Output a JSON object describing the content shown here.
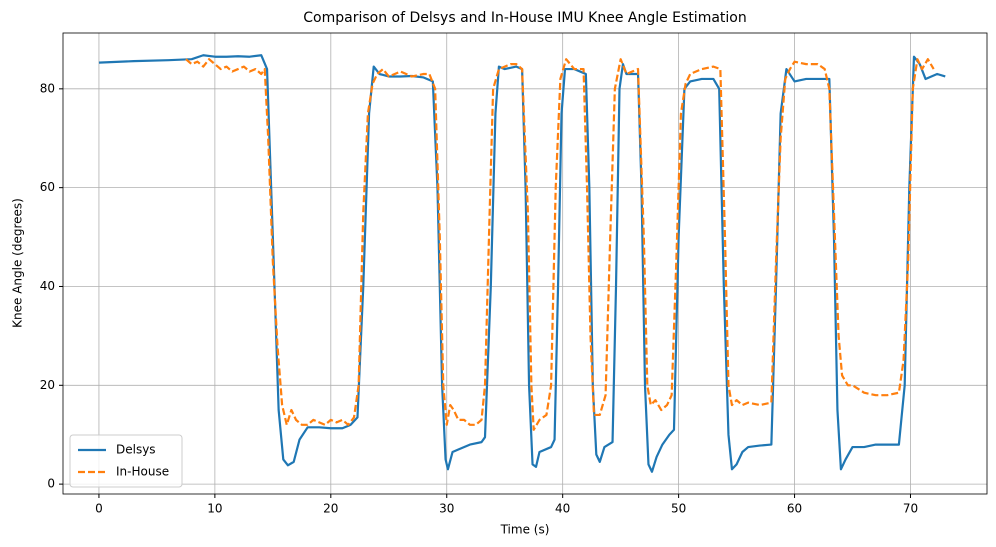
{
  "chart_data": {
    "type": "line",
    "title": "Comparison of Delsys and In-House IMU Knee Angle Estimation",
    "xlabel": "Time (s)",
    "ylabel": "Knee Angle (degrees)",
    "xlim": [
      -3.1,
      76.6
    ],
    "ylim": [
      -2.0,
      91.3
    ],
    "xticks": [
      0,
      10,
      20,
      30,
      40,
      50,
      60,
      70
    ],
    "yticks": [
      0,
      20,
      40,
      60,
      80
    ],
    "grid": true,
    "legend": "lower left",
    "series": [
      {
        "name": "Delsys",
        "color": "#1f77b4",
        "linestyle": "solid",
        "x": [
          0,
          3,
          6,
          8,
          9,
          10,
          11,
          12,
          13,
          14,
          14.5,
          15,
          15.5,
          15.9,
          16.3,
          16.8,
          17.3,
          18,
          19,
          20,
          21,
          21.7,
          22.3,
          22.8,
          23.3,
          23.7,
          24.2,
          25,
          26,
          27,
          28,
          28.8,
          29.2,
          29.6,
          29.9,
          30.1,
          30.5,
          31,
          32,
          33,
          33.3,
          33.8,
          34.2,
          34.5,
          35,
          36,
          36.5,
          36.8,
          37.1,
          37.4,
          37.7,
          38,
          39,
          39.3,
          39.6,
          39.9,
          40.2,
          41,
          42,
          42.3,
          42.6,
          42.9,
          43.2,
          43.6,
          44.3,
          44.6,
          44.9,
          45.2,
          45.5,
          46,
          46.5,
          46.8,
          47.1,
          47.4,
          47.7,
          48.1,
          48.6,
          49.2,
          49.6,
          50,
          50.5,
          51,
          52,
          53,
          53.5,
          53.9,
          54.3,
          54.6,
          55,
          55.5,
          56,
          57,
          58,
          58.4,
          58.8,
          59.3,
          60,
          61,
          62,
          63,
          63.4,
          63.7,
          64,
          64.4,
          65,
          66,
          67,
          68,
          69,
          69.5,
          69.9,
          70.3,
          70.8,
          71.3,
          71.8,
          72.3,
          73
        ],
        "values": [
          85.3,
          85.6,
          85.8,
          86,
          86.8,
          86.5,
          86.5,
          86.6,
          86.5,
          86.8,
          84,
          50,
          15,
          5,
          3.8,
          4.5,
          9,
          11.5,
          11.5,
          11.3,
          11.3,
          12,
          13.5,
          40,
          75,
          84.5,
          83,
          82.5,
          82.5,
          82.6,
          82.3,
          81.5,
          60,
          20,
          5,
          3,
          6.5,
          7,
          8,
          8.5,
          9.5,
          40,
          75,
          84.5,
          84,
          84.5,
          84,
          60,
          20,
          4,
          3.5,
          6.5,
          7.5,
          9,
          40,
          75,
          84,
          84,
          83,
          60,
          20,
          6,
          4.5,
          7.5,
          8.5,
          40,
          80,
          85,
          83,
          83,
          83,
          60,
          20,
          4,
          2.5,
          5.5,
          8,
          10,
          11,
          50,
          80,
          81.5,
          82,
          82,
          80,
          40,
          10,
          3,
          4,
          6.5,
          7.5,
          7.8,
          8,
          40,
          75,
          84,
          81.5,
          82,
          82,
          82,
          50,
          15,
          3,
          5,
          7.5,
          7.5,
          8,
          8,
          8,
          20,
          60,
          86.5,
          85,
          82,
          82.5,
          83,
          82.5
        ]
      },
      {
        "name": "In-House",
        "color": "#ff7f0e",
        "linestyle": "dashed",
        "x": [
          7.5,
          8,
          8.5,
          9,
          9.5,
          10,
          10.5,
          11,
          11.5,
          12,
          12.5,
          13,
          13.5,
          14,
          14.3,
          14.6,
          15,
          15.4,
          15.8,
          16.2,
          16.6,
          17,
          17.5,
          18,
          18.5,
          19,
          19.5,
          20,
          20.5,
          21,
          21.5,
          22,
          22.4,
          22.8,
          23.2,
          23.6,
          24,
          24.5,
          25,
          26,
          27,
          28,
          28.5,
          29,
          29.4,
          29.7,
          30,
          30.3,
          30.6,
          31,
          31.5,
          32,
          32.5,
          33,
          33.3,
          33.7,
          34,
          34.5,
          35,
          35.5,
          36,
          36.5,
          37,
          37.3,
          37.5,
          38,
          38.6,
          39,
          39.4,
          39.8,
          40.3,
          41,
          41.8,
          42.1,
          42.4,
          42.7,
          43.2,
          43.7,
          44.1,
          44.5,
          45,
          45.5,
          46,
          46.5,
          47,
          47.3,
          47.6,
          48,
          48.5,
          49,
          49.4,
          49.8,
          50.2,
          50.6,
          51,
          52,
          53,
          53.6,
          54,
          54.3,
          54.6,
          55,
          55.5,
          56,
          57,
          58,
          58.4,
          58.8,
          59.2,
          59.6,
          60,
          61,
          62,
          62.6,
          63,
          63.4,
          63.8,
          64.1,
          64.6,
          65,
          66,
          67,
          68,
          69,
          69.4,
          69.8,
          70.2,
          70.6,
          71,
          71.5,
          72
        ],
        "values": [
          86,
          85,
          85.5,
          84.5,
          86,
          85,
          84,
          84.5,
          83.5,
          84,
          84.5,
          83.5,
          84,
          83,
          84,
          70,
          45,
          28,
          16,
          12,
          15,
          13,
          12,
          12,
          13,
          12.5,
          12,
          13,
          12.5,
          13,
          12,
          13.5,
          20,
          55,
          75,
          81,
          83,
          84,
          82.5,
          83.5,
          82.5,
          83,
          83,
          80,
          50,
          20,
          12,
          16,
          15,
          13,
          13,
          12,
          12,
          13,
          20,
          55,
          80,
          84,
          84.5,
          85,
          85,
          84,
          55,
          20,
          11,
          13,
          14,
          20,
          60,
          82,
          86,
          84,
          84,
          60,
          30,
          14,
          14,
          18,
          50,
          80,
          86,
          83,
          83.5,
          84,
          50,
          20,
          16,
          17,
          15,
          16,
          18,
          45,
          75,
          81,
          83,
          84,
          84.5,
          84,
          50,
          20,
          16,
          17,
          16,
          16.5,
          16,
          16.5,
          45,
          70,
          82,
          84,
          85.5,
          85,
          85,
          84,
          80,
          55,
          30,
          22,
          20,
          20,
          18.5,
          18,
          18,
          18.5,
          25,
          45,
          80,
          86,
          84,
          86,
          84
        ]
      }
    ]
  }
}
